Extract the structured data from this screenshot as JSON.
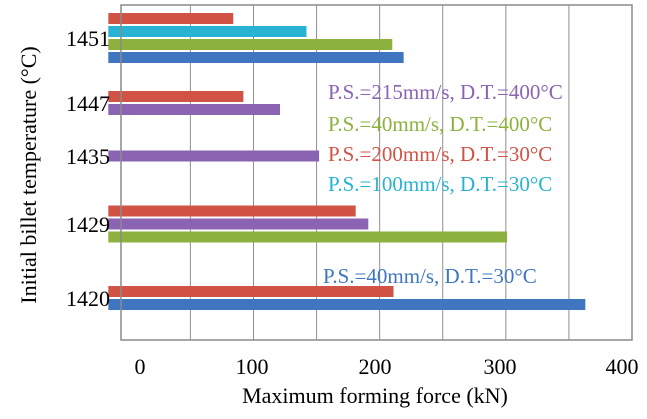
{
  "colors": {
    "s40_30": "#3f76bf",
    "s200_30": "#d05346",
    "s40_400": "#8db13f",
    "s215_400": "#8a63b3",
    "s100_30": "#28b3d4",
    "grid": "#8f8f8f",
    "frame": "#8a8a8a"
  },
  "chart_data": {
    "type": "bar",
    "orientation": "horizontal",
    "title": "",
    "xlabel": "Maximum forming force (kN)",
    "ylabel": "Initial billet temperature (°C)",
    "xlim": [
      -5,
      400
    ],
    "xticks": [
      0,
      100,
      200,
      300,
      400
    ],
    "x_tick_labels": [
      "0",
      "100",
      "200",
      "300",
      "400"
    ],
    "categories": [
      "1420",
      "1429",
      "1435",
      "1447",
      "1451"
    ],
    "grid": true,
    "legend": "none",
    "series": [
      {
        "key": "s40_30",
        "values": [
          363,
          null,
          null,
          null,
          219
        ]
      },
      {
        "key": "s200_30",
        "values": [
          211,
          181,
          null,
          92,
          84
        ]
      },
      {
        "key": "s40_400",
        "values": [
          null,
          301,
          null,
          null,
          210
        ]
      },
      {
        "key": "s215_400",
        "values": [
          null,
          191,
          152,
          121,
          null
        ]
      },
      {
        "key": "s100_30",
        "values": [
          null,
          null,
          null,
          null,
          142
        ]
      }
    ],
    "annotations": [
      {
        "text": "P.S.=215mm/s, D.T.=400°C",
        "series": "s215_400"
      },
      {
        "text": "P.S.=40mm/s, D.T.=400°C",
        "series": "s40_400"
      },
      {
        "text": "P.S.=200mm/s, D.T.=30°C",
        "series": "s200_30"
      },
      {
        "text": "P.S.=100mm/s, D.T.=30°C",
        "series": "s100_30"
      },
      {
        "text": "P.S.=40mm/s, D.T.=30°C",
        "series": "s40_30"
      }
    ]
  }
}
